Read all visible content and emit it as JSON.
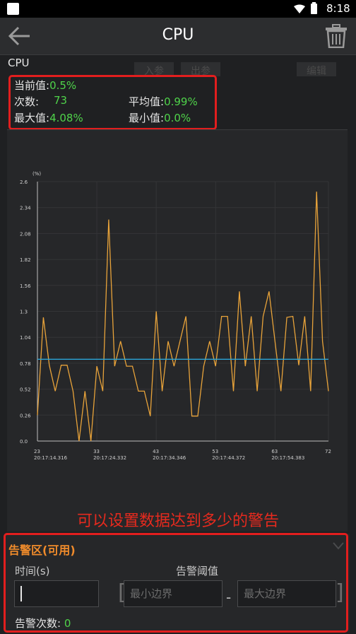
{
  "status_bar": {
    "time": "8:18"
  },
  "app_bar": {
    "title": "CPU"
  },
  "section_label": "CPU",
  "tabs": [
    "入参",
    "出参",
    "编辑"
  ],
  "stats": {
    "current_label": "当前值:",
    "current_value": "0.5%",
    "count_label": "次数:",
    "count_value": "73",
    "avg_label": "平均值:",
    "avg_value": "0.99%",
    "max_label": "最大值:",
    "max_value": "4.08%",
    "min_label": "最小值:",
    "min_value": "0.0%"
  },
  "chart_data": {
    "type": "line",
    "ylabel": "(%)",
    "yticks": [
      "0.0",
      "0.26",
      "0.52",
      "0.78",
      "1.04",
      "1.3",
      "1.56",
      "1.82",
      "2.08",
      "2.34",
      "2.6"
    ],
    "ylim": [
      0,
      2.6
    ],
    "xlim": [
      23,
      72
    ],
    "xticks": [
      {
        "x": 23,
        "label": "23",
        "time": "20:17:14.316"
      },
      {
        "x": 33,
        "label": "33",
        "time": "20:17:24.332"
      },
      {
        "x": 43,
        "label": "43",
        "time": "20:17:34.346"
      },
      {
        "x": 53,
        "label": "53",
        "time": "20:17:44.372"
      },
      {
        "x": 63,
        "label": "63",
        "time": "20:17:54.383"
      },
      {
        "x": 72,
        "label": "72",
        "time": ""
      }
    ],
    "series": [
      {
        "color": "#e8a33a",
        "x": [
          23,
          24,
          25,
          26,
          27,
          28,
          29,
          30,
          31,
          32,
          33,
          34,
          35,
          36,
          37,
          38,
          39,
          40,
          41,
          42,
          43,
          44,
          45,
          46,
          47,
          48,
          49,
          50,
          51,
          52,
          53,
          54,
          55,
          56,
          57,
          58,
          59,
          60,
          61,
          62,
          63,
          64,
          65,
          66,
          67,
          68,
          69,
          70,
          71,
          72
        ],
        "values": [
          0.26,
          1.24,
          0.76,
          0.5,
          0.76,
          0.76,
          0.5,
          0,
          0.5,
          0,
          0.75,
          0.5,
          2.22,
          0.75,
          1,
          0.75,
          0.75,
          0.5,
          0.5,
          0.25,
          1.3,
          0.5,
          1,
          0.75,
          1,
          1.25,
          0.25,
          0.25,
          0.75,
          1,
          0.75,
          1.25,
          1.25,
          0.5,
          1.5,
          0.75,
          1.25,
          0.5,
          1.25,
          1.5,
          1,
          0.5,
          1.24,
          1.25,
          0.76,
          1.25,
          0.5,
          2.5,
          1,
          0.5
        ]
      },
      {
        "color": "#2aa6d8",
        "x": [
          23,
          72
        ],
        "values": [
          0.82,
          0.82
        ]
      }
    ],
    "grid": true
  },
  "annotation": "可以设置数据达到多少的警告",
  "alarm": {
    "title": "告警区(可用)",
    "time_label": "时间(s)",
    "threshold_label": "告警阈值",
    "time_value": "",
    "min_placeholder": "最小边界",
    "max_placeholder": "最大边界",
    "count_label": "告警次数:",
    "count_value": "0"
  },
  "colors": {
    "accent_red": "#e21e1e",
    "value_green": "#4fd34a",
    "alarm_orange": "#f08b2b",
    "line_orange": "#e8a33a",
    "avg_blue": "#2aa6d8"
  }
}
